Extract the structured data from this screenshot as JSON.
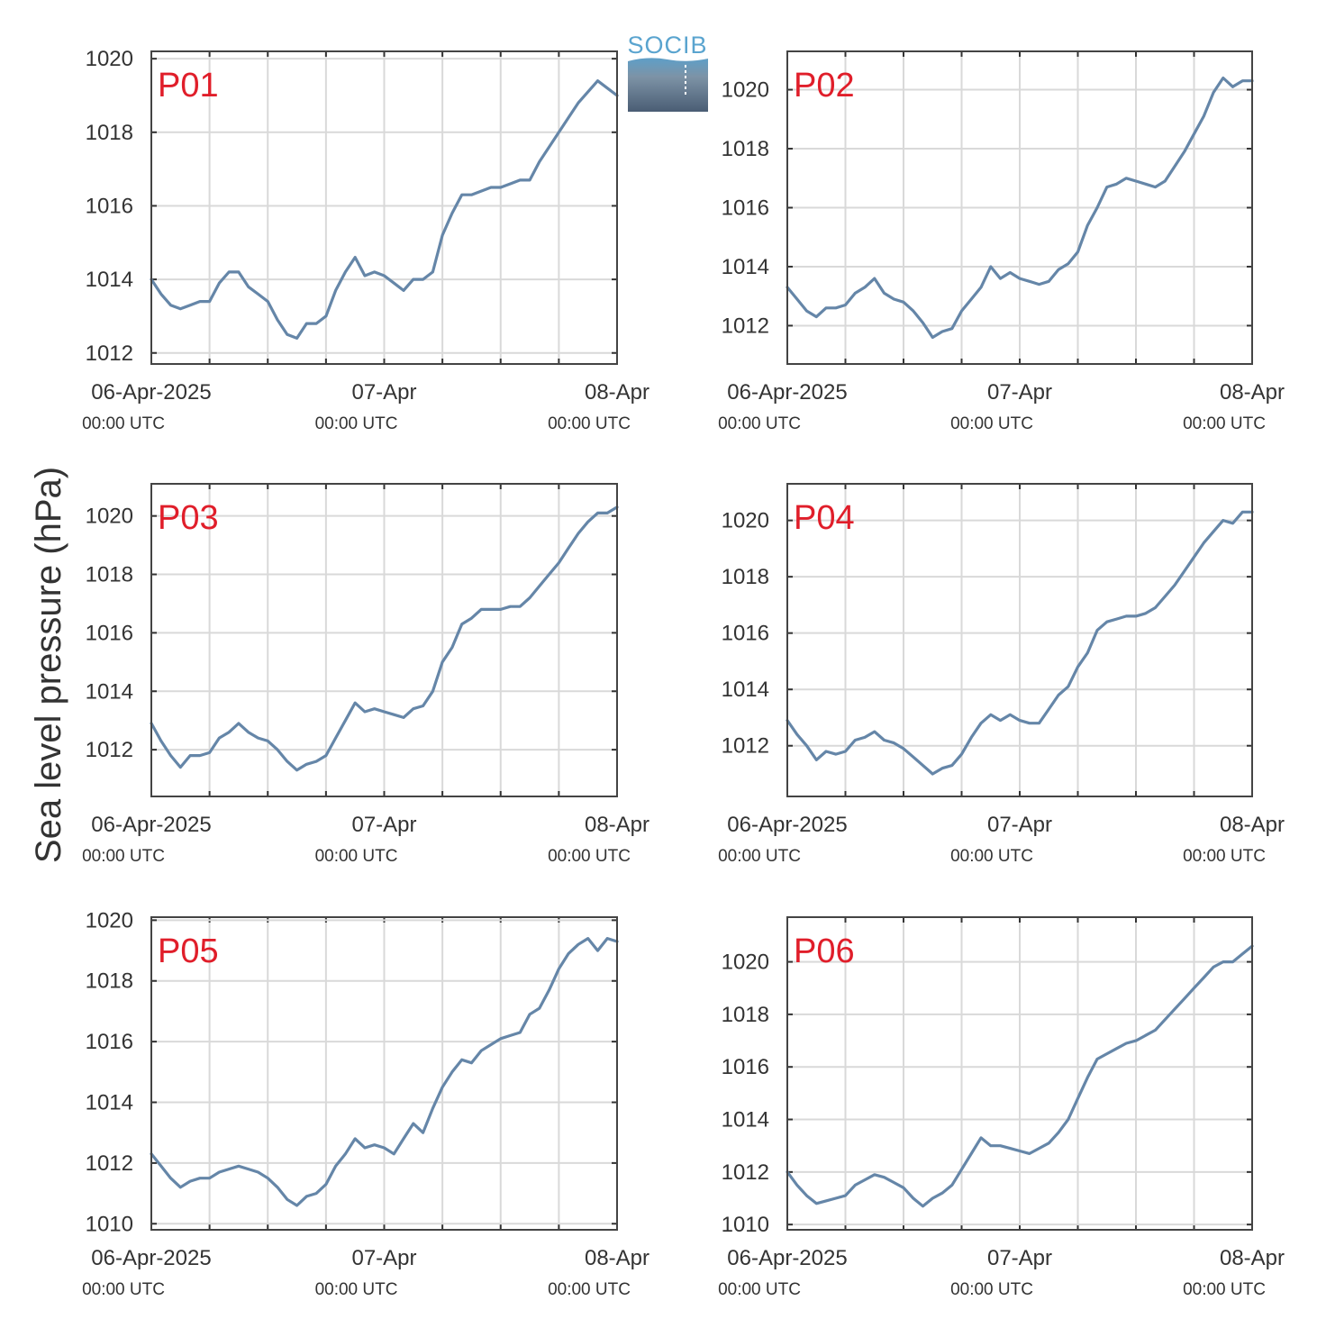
{
  "logo": {
    "text": "SOCIB"
  },
  "ylabel": "Sea level pressure (hPa)",
  "xticks": [
    {
      "label": "06-Apr-2025",
      "sub": "00:00 UTC",
      "hour": 0
    },
    {
      "label": "07-Apr",
      "sub": "00:00 UTC",
      "hour": 24
    },
    {
      "label": "08-Apr",
      "sub": "00:00 UTC",
      "hour": 48
    }
  ],
  "chart_data": [
    {
      "type": "line",
      "label": "P01",
      "color": "#6586a8",
      "xlim": [
        "06-Apr-2025 00:00",
        "08-Apr-2025 00:00"
      ],
      "ylim": [
        1011.7,
        1020.2
      ],
      "yticks": [
        1012,
        1014,
        1016,
        1018,
        1020
      ],
      "x": [
        "06-Apr 00:00",
        "06-Apr 01:00",
        "06-Apr 02:00",
        "06-Apr 03:00",
        "06-Apr 04:00",
        "06-Apr 05:00",
        "06-Apr 06:00",
        "06-Apr 07:00",
        "06-Apr 08:00",
        "06-Apr 09:00",
        "06-Apr 10:00",
        "06-Apr 11:00",
        "06-Apr 12:00",
        "06-Apr 13:00",
        "06-Apr 14:00",
        "06-Apr 15:00",
        "06-Apr 16:00",
        "06-Apr 17:00",
        "06-Apr 18:00",
        "06-Apr 19:00",
        "06-Apr 20:00",
        "06-Apr 21:00",
        "06-Apr 22:00",
        "06-Apr 23:00",
        "07-Apr 00:00",
        "07-Apr 01:00",
        "07-Apr 02:00",
        "07-Apr 03:00",
        "07-Apr 04:00",
        "07-Apr 05:00",
        "07-Apr 06:00",
        "07-Apr 07:00",
        "07-Apr 08:00",
        "07-Apr 09:00",
        "07-Apr 10:00",
        "07-Apr 11:00",
        "07-Apr 12:00",
        "07-Apr 13:00",
        "07-Apr 14:00",
        "07-Apr 15:00",
        "07-Apr 16:00",
        "07-Apr 17:00",
        "07-Apr 18:00",
        "07-Apr 19:00",
        "07-Apr 20:00",
        "07-Apr 21:00",
        "07-Apr 22:00",
        "07-Apr 23:00",
        "08-Apr 00:00"
      ],
      "y": [
        1014.0,
        1013.6,
        1013.3,
        1013.2,
        1013.3,
        1013.4,
        1013.4,
        1013.9,
        1014.2,
        1014.2,
        1013.8,
        1013.6,
        1013.4,
        1012.9,
        1012.5,
        1012.4,
        1012.8,
        1012.8,
        1013.0,
        1013.7,
        1014.2,
        1014.6,
        1014.1,
        1014.2,
        1014.1,
        1013.9,
        1013.7,
        1014.0,
        1014.0,
        1014.2,
        1015.2,
        1015.8,
        1016.3,
        1016.3,
        1016.4,
        1016.5,
        1016.5,
        1016.6,
        1016.7,
        1016.7,
        1017.2,
        1017.6,
        1018.0,
        1018.4,
        1018.8,
        1019.1,
        1019.4,
        1019.2,
        1019.0
      ]
    },
    {
      "type": "line",
      "label": "P02",
      "color": "#6586a8",
      "xlim": [
        "06-Apr-2025 00:00",
        "08-Apr-2025 00:00"
      ],
      "ylim": [
        1010.7,
        1021.3
      ],
      "yticks": [
        1012,
        1014,
        1016,
        1018,
        1020
      ],
      "x": [
        "06-Apr 00:00",
        "06-Apr 01:00",
        "06-Apr 02:00",
        "06-Apr 03:00",
        "06-Apr 04:00",
        "06-Apr 05:00",
        "06-Apr 06:00",
        "06-Apr 07:00",
        "06-Apr 08:00",
        "06-Apr 09:00",
        "06-Apr 10:00",
        "06-Apr 11:00",
        "06-Apr 12:00",
        "06-Apr 13:00",
        "06-Apr 14:00",
        "06-Apr 15:00",
        "06-Apr 16:00",
        "06-Apr 17:00",
        "06-Apr 18:00",
        "06-Apr 19:00",
        "06-Apr 20:00",
        "06-Apr 21:00",
        "06-Apr 22:00",
        "06-Apr 23:00",
        "07-Apr 00:00",
        "07-Apr 01:00",
        "07-Apr 02:00",
        "07-Apr 03:00",
        "07-Apr 04:00",
        "07-Apr 05:00",
        "07-Apr 06:00",
        "07-Apr 07:00",
        "07-Apr 08:00",
        "07-Apr 09:00",
        "07-Apr 10:00",
        "07-Apr 11:00",
        "07-Apr 12:00",
        "07-Apr 13:00",
        "07-Apr 14:00",
        "07-Apr 15:00",
        "07-Apr 16:00",
        "07-Apr 17:00",
        "07-Apr 18:00",
        "07-Apr 19:00",
        "07-Apr 20:00",
        "07-Apr 21:00",
        "07-Apr 22:00",
        "07-Apr 23:00",
        "08-Apr 00:00"
      ],
      "y": [
        1013.3,
        1012.9,
        1012.5,
        1012.3,
        1012.6,
        1012.6,
        1012.7,
        1013.1,
        1013.3,
        1013.6,
        1013.1,
        1012.9,
        1012.8,
        1012.5,
        1012.1,
        1011.6,
        1011.8,
        1011.9,
        1012.5,
        1012.9,
        1013.3,
        1014.0,
        1013.6,
        1013.8,
        1013.6,
        1013.5,
        1013.4,
        1013.5,
        1013.9,
        1014.1,
        1014.5,
        1015.4,
        1016.0,
        1016.7,
        1016.8,
        1017.0,
        1016.9,
        1016.8,
        1016.7,
        1016.9,
        1017.4,
        1017.9,
        1018.5,
        1019.1,
        1019.9,
        1020.4,
        1020.1,
        1020.3,
        1020.3
      ]
    },
    {
      "type": "line",
      "label": "P03",
      "color": "#6586a8",
      "xlim": [
        "06-Apr-2025 00:00",
        "08-Apr-2025 00:00"
      ],
      "ylim": [
        1010.4,
        1021.1
      ],
      "yticks": [
        1012,
        1014,
        1016,
        1018,
        1020
      ],
      "x": [
        "06-Apr 00:00",
        "06-Apr 01:00",
        "06-Apr 02:00",
        "06-Apr 03:00",
        "06-Apr 04:00",
        "06-Apr 05:00",
        "06-Apr 06:00",
        "06-Apr 07:00",
        "06-Apr 08:00",
        "06-Apr 09:00",
        "06-Apr 10:00",
        "06-Apr 11:00",
        "06-Apr 12:00",
        "06-Apr 13:00",
        "06-Apr 14:00",
        "06-Apr 15:00",
        "06-Apr 16:00",
        "06-Apr 17:00",
        "06-Apr 18:00",
        "06-Apr 19:00",
        "06-Apr 20:00",
        "06-Apr 21:00",
        "06-Apr 22:00",
        "06-Apr 23:00",
        "07-Apr 00:00",
        "07-Apr 01:00",
        "07-Apr 02:00",
        "07-Apr 03:00",
        "07-Apr 04:00",
        "07-Apr 05:00",
        "07-Apr 06:00",
        "07-Apr 07:00",
        "07-Apr 08:00",
        "07-Apr 09:00",
        "07-Apr 10:00",
        "07-Apr 11:00",
        "07-Apr 12:00",
        "07-Apr 13:00",
        "07-Apr 14:00",
        "07-Apr 15:00",
        "07-Apr 16:00",
        "07-Apr 17:00",
        "07-Apr 18:00",
        "07-Apr 19:00",
        "07-Apr 20:00",
        "07-Apr 21:00",
        "07-Apr 22:00",
        "07-Apr 23:00",
        "08-Apr 00:00"
      ],
      "y": [
        1012.9,
        1012.3,
        1011.8,
        1011.4,
        1011.8,
        1011.8,
        1011.9,
        1012.4,
        1012.6,
        1012.9,
        1012.6,
        1012.4,
        1012.3,
        1012.0,
        1011.6,
        1011.3,
        1011.5,
        1011.6,
        1011.8,
        1012.4,
        1013.0,
        1013.6,
        1013.3,
        1013.4,
        1013.3,
        1013.2,
        1013.1,
        1013.4,
        1013.5,
        1014.0,
        1015.0,
        1015.5,
        1016.3,
        1016.5,
        1016.8,
        1016.8,
        1016.8,
        1016.9,
        1016.9,
        1017.2,
        1017.6,
        1018.0,
        1018.4,
        1018.9,
        1019.4,
        1019.8,
        1020.1,
        1020.1,
        1020.3
      ]
    },
    {
      "type": "line",
      "label": "P04",
      "color": "#6586a8",
      "xlim": [
        "06-Apr-2025 00:00",
        "08-Apr-2025 00:00"
      ],
      "ylim": [
        1010.2,
        1021.3
      ],
      "yticks": [
        1012,
        1014,
        1016,
        1018,
        1020
      ],
      "x": [
        "06-Apr 00:00",
        "06-Apr 01:00",
        "06-Apr 02:00",
        "06-Apr 03:00",
        "06-Apr 04:00",
        "06-Apr 05:00",
        "06-Apr 06:00",
        "06-Apr 07:00",
        "06-Apr 08:00",
        "06-Apr 09:00",
        "06-Apr 10:00",
        "06-Apr 11:00",
        "06-Apr 12:00",
        "06-Apr 13:00",
        "06-Apr 14:00",
        "06-Apr 15:00",
        "06-Apr 16:00",
        "06-Apr 17:00",
        "06-Apr 18:00",
        "06-Apr 19:00",
        "06-Apr 20:00",
        "06-Apr 21:00",
        "06-Apr 22:00",
        "06-Apr 23:00",
        "07-Apr 00:00",
        "07-Apr 01:00",
        "07-Apr 02:00",
        "07-Apr 03:00",
        "07-Apr 04:00",
        "07-Apr 05:00",
        "07-Apr 06:00",
        "07-Apr 07:00",
        "07-Apr 08:00",
        "07-Apr 09:00",
        "07-Apr 10:00",
        "07-Apr 11:00",
        "07-Apr 12:00",
        "07-Apr 13:00",
        "07-Apr 14:00",
        "07-Apr 15:00",
        "07-Apr 16:00",
        "07-Apr 17:00",
        "07-Apr 18:00",
        "07-Apr 19:00",
        "07-Apr 20:00",
        "07-Apr 21:00",
        "07-Apr 22:00",
        "07-Apr 23:00",
        "08-Apr 00:00"
      ],
      "y": [
        1012.9,
        1012.4,
        1012.0,
        1011.5,
        1011.8,
        1011.7,
        1011.8,
        1012.2,
        1012.3,
        1012.5,
        1012.2,
        1012.1,
        1011.9,
        1011.6,
        1011.3,
        1011.0,
        1011.2,
        1011.3,
        1011.7,
        1012.3,
        1012.8,
        1013.1,
        1012.9,
        1013.1,
        1012.9,
        1012.8,
        1012.8,
        1013.3,
        1013.8,
        1014.1,
        1014.8,
        1015.3,
        1016.1,
        1016.4,
        1016.5,
        1016.6,
        1016.6,
        1016.7,
        1016.9,
        1017.3,
        1017.7,
        1018.2,
        1018.7,
        1019.2,
        1019.6,
        1020.0,
        1019.9,
        1020.3,
        1020.3
      ]
    },
    {
      "type": "line",
      "label": "P05",
      "color": "#6586a8",
      "xlim": [
        "06-Apr-2025 00:00",
        "08-Apr-2025 00:00"
      ],
      "ylim": [
        1009.8,
        1020.1
      ],
      "yticks": [
        1010,
        1012,
        1014,
        1016,
        1018,
        1020
      ],
      "x": [
        "06-Apr 00:00",
        "06-Apr 01:00",
        "06-Apr 02:00",
        "06-Apr 03:00",
        "06-Apr 04:00",
        "06-Apr 05:00",
        "06-Apr 06:00",
        "06-Apr 07:00",
        "06-Apr 08:00",
        "06-Apr 09:00",
        "06-Apr 10:00",
        "06-Apr 11:00",
        "06-Apr 12:00",
        "06-Apr 13:00",
        "06-Apr 14:00",
        "06-Apr 15:00",
        "06-Apr 16:00",
        "06-Apr 17:00",
        "06-Apr 18:00",
        "06-Apr 19:00",
        "06-Apr 20:00",
        "06-Apr 21:00",
        "06-Apr 22:00",
        "06-Apr 23:00",
        "07-Apr 00:00",
        "07-Apr 01:00",
        "07-Apr 02:00",
        "07-Apr 03:00",
        "07-Apr 04:00",
        "07-Apr 05:00",
        "07-Apr 06:00",
        "07-Apr 07:00",
        "07-Apr 08:00",
        "07-Apr 09:00",
        "07-Apr 10:00",
        "07-Apr 11:00",
        "07-Apr 12:00",
        "07-Apr 13:00",
        "07-Apr 14:00",
        "07-Apr 15:00",
        "07-Apr 16:00",
        "07-Apr 17:00",
        "07-Apr 18:00",
        "07-Apr 19:00",
        "07-Apr 20:00",
        "07-Apr 21:00",
        "07-Apr 22:00",
        "07-Apr 23:00",
        "08-Apr 00:00"
      ],
      "y": [
        1012.3,
        1011.9,
        1011.5,
        1011.2,
        1011.4,
        1011.5,
        1011.5,
        1011.7,
        1011.8,
        1011.9,
        1011.8,
        1011.7,
        1011.5,
        1011.2,
        1010.8,
        1010.6,
        1010.9,
        1011.0,
        1011.3,
        1011.9,
        1012.3,
        1012.8,
        1012.5,
        1012.6,
        1012.5,
        1012.3,
        1012.8,
        1013.3,
        1013.0,
        1013.8,
        1014.5,
        1015.0,
        1015.4,
        1015.3,
        1015.7,
        1015.9,
        1016.1,
        1016.2,
        1016.3,
        1016.9,
        1017.1,
        1017.7,
        1018.4,
        1018.9,
        1019.2,
        1019.4,
        1019.0,
        1019.4,
        1019.3
      ]
    },
    {
      "type": "line",
      "label": "P06",
      "color": "#6586a8",
      "xlim": [
        "06-Apr-2025 00:00",
        "08-Apr-2025 00:00"
      ],
      "ylim": [
        1009.8,
        1021.7
      ],
      "yticks": [
        1010,
        1012,
        1014,
        1016,
        1018,
        1020
      ],
      "x": [
        "06-Apr 00:00",
        "06-Apr 01:00",
        "06-Apr 02:00",
        "06-Apr 03:00",
        "06-Apr 04:00",
        "06-Apr 05:00",
        "06-Apr 06:00",
        "06-Apr 07:00",
        "06-Apr 08:00",
        "06-Apr 09:00",
        "06-Apr 10:00",
        "06-Apr 11:00",
        "06-Apr 12:00",
        "06-Apr 13:00",
        "06-Apr 14:00",
        "06-Apr 15:00",
        "06-Apr 16:00",
        "06-Apr 17:00",
        "06-Apr 18:00",
        "06-Apr 19:00",
        "06-Apr 20:00",
        "06-Apr 21:00",
        "06-Apr 22:00",
        "06-Apr 23:00",
        "07-Apr 00:00",
        "07-Apr 01:00",
        "07-Apr 02:00",
        "07-Apr 03:00",
        "07-Apr 04:00",
        "07-Apr 05:00",
        "07-Apr 06:00",
        "07-Apr 07:00",
        "07-Apr 08:00",
        "07-Apr 09:00",
        "07-Apr 10:00",
        "07-Apr 11:00",
        "07-Apr 12:00",
        "07-Apr 13:00",
        "07-Apr 14:00",
        "07-Apr 15:00",
        "07-Apr 16:00",
        "07-Apr 17:00",
        "07-Apr 18:00",
        "07-Apr 19:00",
        "07-Apr 20:00",
        "07-Apr 21:00",
        "07-Apr 22:00",
        "07-Apr 23:00",
        "08-Apr 00:00"
      ],
      "y": [
        1012.0,
        1011.5,
        1011.1,
        1010.8,
        1010.9,
        1011.0,
        1011.1,
        1011.5,
        1011.7,
        1011.9,
        1011.8,
        1011.6,
        1011.4,
        1011.0,
        1010.7,
        1011.0,
        1011.2,
        1011.5,
        1012.1,
        1012.7,
        1013.3,
        1013.0,
        1013.0,
        1012.9,
        1012.8,
        1012.7,
        1012.9,
        1013.1,
        1013.5,
        1014.0,
        1014.8,
        1015.6,
        1016.3,
        1016.5,
        1016.7,
        1016.9,
        1017.0,
        1017.2,
        1017.4,
        1017.8,
        1018.2,
        1018.6,
        1019.0,
        1019.4,
        1019.8,
        1020.0,
        1020.0,
        1020.3,
        1020.6
      ]
    }
  ]
}
